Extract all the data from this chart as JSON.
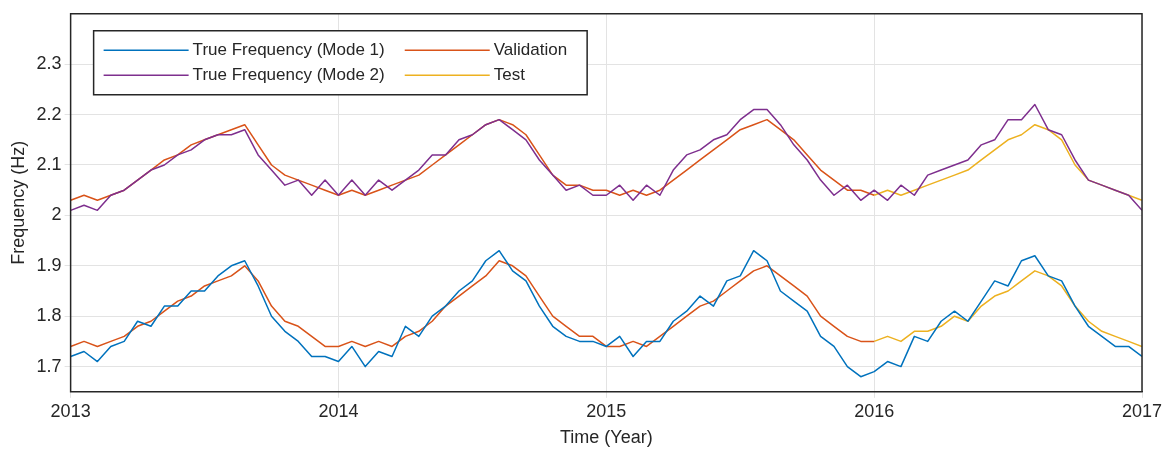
{
  "chart_data": {
    "type": "line",
    "xlabel": "Time (Year)",
    "ylabel": "Frequency (Hz)",
    "x": [
      2013,
      2013.05,
      2013.1,
      2013.15,
      2013.2,
      2013.25,
      2013.3,
      2013.35,
      2013.4,
      2013.45,
      2013.5,
      2013.55,
      2013.6,
      2013.65,
      2013.7,
      2013.75,
      2013.8,
      2013.85,
      2013.9,
      2013.95,
      2014,
      2014.05,
      2014.1,
      2014.15,
      2014.2,
      2014.25,
      2014.3,
      2014.35,
      2014.4,
      2014.45,
      2014.5,
      2014.55,
      2014.6,
      2014.65,
      2014.7,
      2014.75,
      2014.8,
      2014.85,
      2014.9,
      2014.95,
      2015,
      2015.05,
      2015.1,
      2015.15,
      2015.2,
      2015.25,
      2015.3,
      2015.35,
      2015.4,
      2015.45,
      2015.5,
      2015.55,
      2015.6,
      2015.65,
      2015.7,
      2015.75,
      2015.8,
      2015.85,
      2015.9,
      2015.95,
      2016,
      2016.05,
      2016.1,
      2016.15,
      2016.2,
      2016.25,
      2016.3,
      2016.35,
      2016.4,
      2016.45,
      2016.5,
      2016.55,
      2016.6,
      2016.65,
      2016.7,
      2016.75,
      2016.8,
      2016.85,
      2016.9,
      2016.95,
      2017
    ],
    "series": [
      {
        "name": "True Frequency (Mode 1)",
        "color": "#0072bd",
        "values": [
          1.72,
          1.73,
          1.71,
          1.74,
          1.75,
          1.79,
          1.78,
          1.82,
          1.82,
          1.85,
          1.85,
          1.88,
          1.9,
          1.91,
          1.86,
          1.8,
          1.77,
          1.75,
          1.72,
          1.72,
          1.71,
          1.74,
          1.7,
          1.73,
          1.72,
          1.78,
          1.76,
          1.8,
          1.82,
          1.85,
          1.87,
          1.91,
          1.93,
          1.89,
          1.87,
          1.82,
          1.78,
          1.76,
          1.75,
          1.75,
          1.74,
          1.76,
          1.72,
          1.75,
          1.75,
          1.79,
          1.81,
          1.84,
          1.82,
          1.87,
          1.88,
          1.93,
          1.91,
          1.85,
          1.83,
          1.81,
          1.76,
          1.74,
          1.7,
          1.68,
          1.69,
          1.71,
          1.7,
          1.76,
          1.75,
          1.79,
          1.81,
          1.79,
          1.83,
          1.87,
          1.86,
          1.91,
          1.92,
          1.88,
          1.87,
          1.82,
          1.78,
          1.76,
          1.74,
          1.74,
          1.72
        ]
      },
      {
        "name": "True Frequency (Mode 2)",
        "color": "#7e2f8e",
        "values": [
          2.01,
          2.02,
          2.01,
          2.04,
          2.05,
          2.07,
          2.09,
          2.1,
          2.12,
          2.13,
          2.15,
          2.16,
          2.16,
          2.17,
          2.12,
          2.09,
          2.06,
          2.07,
          2.04,
          2.07,
          2.04,
          2.07,
          2.04,
          2.07,
          2.05,
          2.07,
          2.09,
          2.12,
          2.12,
          2.15,
          2.16,
          2.18,
          2.19,
          2.17,
          2.15,
          2.11,
          2.08,
          2.05,
          2.06,
          2.04,
          2.04,
          2.06,
          2.03,
          2.06,
          2.04,
          2.09,
          2.12,
          2.13,
          2.15,
          2.16,
          2.19,
          2.21,
          2.21,
          2.18,
          2.14,
          2.11,
          2.07,
          2.04,
          2.06,
          2.03,
          2.05,
          2.03,
          2.06,
          2.04,
          2.08,
          2.09,
          2.1,
          2.11,
          2.14,
          2.15,
          2.19,
          2.19,
          2.22,
          2.17,
          2.16,
          2.11,
          2.07,
          2.06,
          2.05,
          2.04,
          2.01
        ]
      },
      {
        "name": "Validation",
        "color": "#d95319",
        "values": [
          1.74,
          1.75,
          1.74,
          1.75,
          1.76,
          1.78,
          1.79,
          1.81,
          1.83,
          1.84,
          1.86,
          1.87,
          1.88,
          1.9,
          1.87,
          1.82,
          1.79,
          1.78,
          1.76,
          1.74,
          1.74,
          1.75,
          1.74,
          1.75,
          1.74,
          1.76,
          1.77,
          1.79,
          1.82,
          1.84,
          1.86,
          1.88,
          1.91,
          1.9,
          1.88,
          1.84,
          1.8,
          1.78,
          1.76,
          1.76,
          1.74,
          1.74,
          1.75,
          1.74,
          1.76,
          1.78,
          1.8,
          1.82,
          1.83,
          1.85,
          1.87,
          1.89,
          1.9,
          1.88,
          1.86,
          1.84,
          1.8,
          1.78,
          1.76,
          1.75,
          1.75,
          null,
          null,
          null,
          null,
          null,
          null,
          null,
          null,
          null,
          null,
          null,
          null,
          null,
          null,
          null,
          null,
          null,
          null,
          null,
          null
        ]
      },
      {
        "color": "#d95319",
        "values": [
          2.03,
          2.04,
          2.03,
          2.04,
          2.05,
          2.07,
          2.09,
          2.11,
          2.12,
          2.14,
          2.15,
          2.16,
          2.17,
          2.18,
          2.14,
          2.1,
          2.08,
          2.07,
          2.06,
          2.05,
          2.04,
          2.05,
          2.04,
          2.05,
          2.06,
          2.07,
          2.08,
          2.1,
          2.12,
          2.14,
          2.16,
          2.18,
          2.19,
          2.18,
          2.16,
          2.12,
          2.08,
          2.06,
          2.06,
          2.05,
          2.05,
          2.04,
          2.05,
          2.04,
          2.05,
          2.07,
          2.09,
          2.11,
          2.13,
          2.15,
          2.17,
          2.18,
          2.19,
          2.17,
          2.15,
          2.12,
          2.09,
          2.07,
          2.05,
          2.05,
          2.04,
          null,
          null,
          null,
          null,
          null,
          null,
          null,
          null,
          null,
          null,
          null,
          null,
          null,
          null,
          null,
          null,
          null,
          null,
          null,
          null
        ]
      },
      {
        "name": "Test",
        "color": "#edb120",
        "values": [
          null,
          null,
          null,
          null,
          null,
          null,
          null,
          null,
          null,
          null,
          null,
          null,
          null,
          null,
          null,
          null,
          null,
          null,
          null,
          null,
          null,
          null,
          null,
          null,
          null,
          null,
          null,
          null,
          null,
          null,
          null,
          null,
          null,
          null,
          null,
          null,
          null,
          null,
          null,
          null,
          null,
          null,
          null,
          null,
          null,
          null,
          null,
          null,
          null,
          null,
          null,
          null,
          null,
          null,
          null,
          null,
          null,
          null,
          null,
          null,
          1.75,
          1.76,
          1.75,
          1.77,
          1.77,
          1.78,
          1.8,
          1.79,
          1.82,
          1.84,
          1.85,
          1.87,
          1.89,
          1.88,
          1.86,
          1.82,
          1.79,
          1.77,
          1.76,
          1.75,
          1.74
        ]
      },
      {
        "color": "#edb120",
        "values": [
          null,
          null,
          null,
          null,
          null,
          null,
          null,
          null,
          null,
          null,
          null,
          null,
          null,
          null,
          null,
          null,
          null,
          null,
          null,
          null,
          null,
          null,
          null,
          null,
          null,
          null,
          null,
          null,
          null,
          null,
          null,
          null,
          null,
          null,
          null,
          null,
          null,
          null,
          null,
          null,
          null,
          null,
          null,
          null,
          null,
          null,
          null,
          null,
          null,
          null,
          null,
          null,
          null,
          null,
          null,
          null,
          null,
          null,
          null,
          null,
          2.04,
          2.05,
          2.04,
          2.05,
          2.06,
          2.07,
          2.08,
          2.09,
          2.11,
          2.13,
          2.15,
          2.16,
          2.18,
          2.17,
          2.15,
          2.1,
          2.07,
          2.06,
          2.05,
          2.04,
          2.03
        ]
      }
    ],
    "xlim": [
      2013,
      2017
    ],
    "xticks": [
      2013,
      2014,
      2015,
      2016,
      2017
    ],
    "ylim": [
      1.65,
      2.4
    ],
    "yticks": [
      1.7,
      1.8,
      1.9,
      2,
      2.1,
      2.2,
      2.3
    ],
    "grid": true,
    "legend": "top left",
    "marker": "none",
    "line_style": "solid"
  }
}
